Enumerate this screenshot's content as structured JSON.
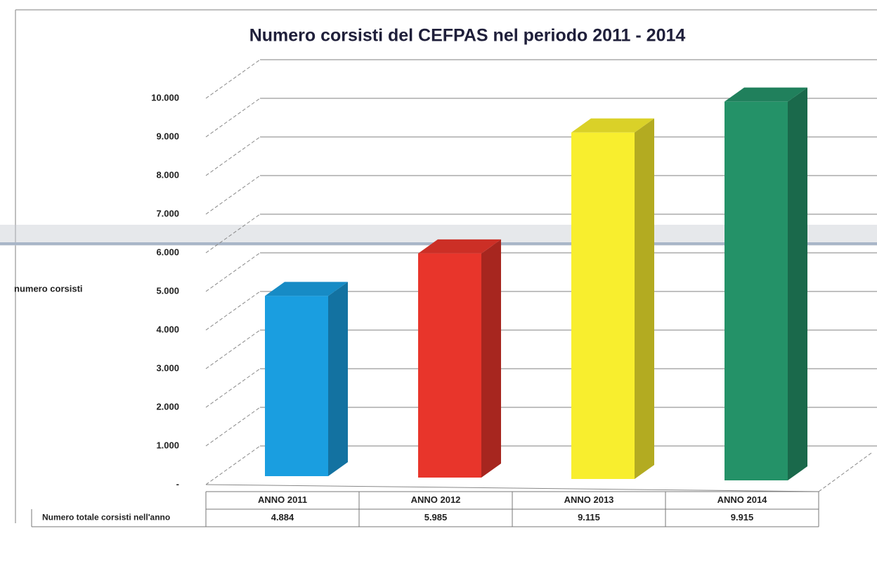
{
  "chart_data": {
    "type": "bar3d",
    "title": "Numero corsisti del CEFPAS nel periodo 2011 - 2014",
    "ylabel": "numero corsisti",
    "categories": [
      "ANNO 2011",
      "ANNO 2012",
      "ANNO 2013",
      "ANNO 2014"
    ],
    "series": [
      {
        "name": "Numero totale corsisti nell'anno",
        "colors": [
          "#1a9ee0",
          "#e8352b",
          "#f8ee2e",
          "#249268"
        ],
        "values": [
          4884,
          5985,
          9115,
          9915
        ],
        "value_labels": [
          "4.884",
          "5.985",
          "9.115",
          "9.915"
        ]
      }
    ],
    "ylim": [
      0,
      10000
    ],
    "yticks": [
      {
        "value": 0,
        "label": "-"
      },
      {
        "value": 1000,
        "label": "1.000"
      },
      {
        "value": 2000,
        "label": "2.000"
      },
      {
        "value": 3000,
        "label": "3.000"
      },
      {
        "value": 4000,
        "label": "4.000"
      },
      {
        "value": 5000,
        "label": "5.000"
      },
      {
        "value": 6000,
        "label": "6.000"
      },
      {
        "value": 7000,
        "label": "7.000"
      },
      {
        "value": 8000,
        "label": "8.000"
      },
      {
        "value": 9000,
        "label": "9.000"
      },
      {
        "value": 10000,
        "label": "10.000"
      }
    ],
    "grid": true
  }
}
